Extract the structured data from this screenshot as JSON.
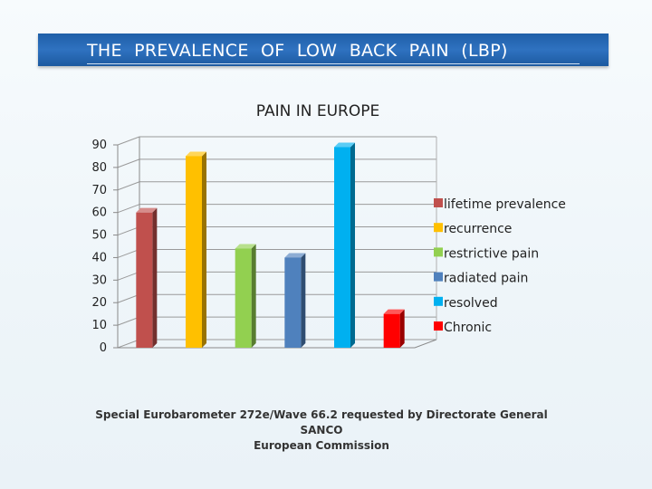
{
  "header": {
    "title": "THE PREVALENCE OF LOW BACK PAIN (LBP)"
  },
  "chart_data": {
    "type": "bar",
    "title": "PAIN IN EUROPE",
    "xlabel": "",
    "ylabel": "",
    "ylim": [
      0,
      90
    ],
    "yticks": [
      0,
      10,
      20,
      30,
      40,
      50,
      60,
      70,
      80,
      90
    ],
    "grid": true,
    "legend_position": "right",
    "series": [
      {
        "name": "lifetime prevalence",
        "value": 60,
        "color": "#c0504d"
      },
      {
        "name": "recurrence",
        "value": 85,
        "color": "#ffc000"
      },
      {
        "name": "restrictive pain",
        "value": 44,
        "color": "#92d050"
      },
      {
        "name": "radiated pain",
        "value": 40,
        "color": "#4f81bd"
      },
      {
        "name": "resolved",
        "value": 89,
        "color": "#00b0f0"
      },
      {
        "name": "Chronic",
        "value": 15,
        "color": "#ff0000"
      }
    ]
  },
  "source": {
    "line1": "Special Eurobarometer 272e/Wave 66.2 requested by Directorate General SANCO",
    "line2": "European Commission"
  }
}
